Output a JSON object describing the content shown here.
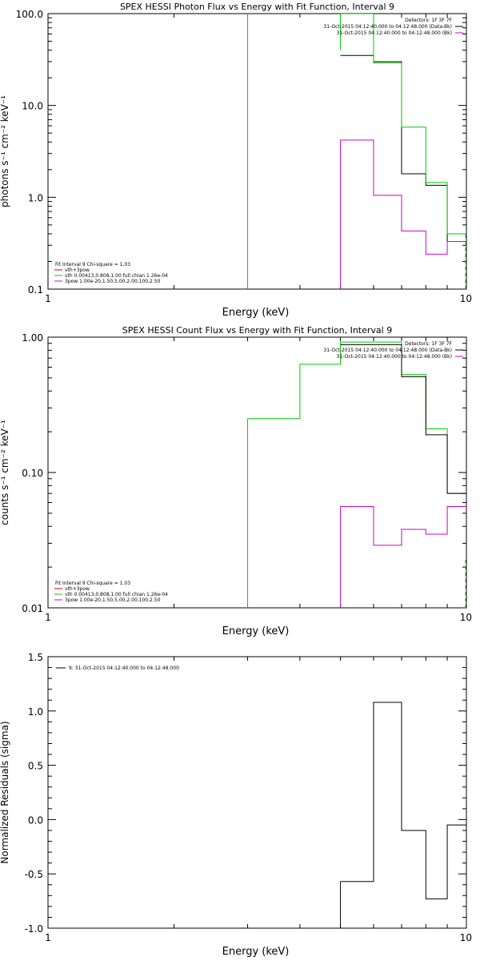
{
  "chart_data": [
    {
      "type": "line",
      "title": "SPEX HESSI Photon Flux vs Energy with Fit Function, Interval 9",
      "xlabel": "Energy (keV)",
      "ylabel": "photons s⁻¹ cm⁻² keV⁻¹",
      "xscale": "log",
      "yscale": "log",
      "xlim": [
        1,
        10
      ],
      "ylim": [
        0.1,
        100
      ],
      "xticks": [
        "1",
        "10"
      ],
      "yticks": [
        "0.1",
        "1.0",
        "10.0",
        "100.0"
      ],
      "legend_top": [
        "Detectors: 1F 3F 7F",
        "31-Oct-2015 04:12:40.000 to 04:12:48.000 (Data-Bk)",
        "31-Oct-2015 04:12:40.000 to 04:12:48.000 (Bk)"
      ],
      "legend_bottom": [
        "Fit Interval 9   Chi-square = 1.03",
        "vth+3pow",
        "vth 0.00413,0.808,1.00   full chian 1.26e-04",
        "3pow 1.00e-20,1.50,5.00,2.00,100,2.50"
      ],
      "colors": {
        "data": "#000000",
        "bk": "#cc00cc",
        "fit": "#00cc00",
        "legend2": "#cc0000"
      },
      "series": [
        {
          "role": "data",
          "edges": [
            5,
            6,
            7,
            8,
            9,
            10
          ],
          "values": [
            35,
            30,
            1.8,
            1.35,
            0.33
          ]
        },
        {
          "role": "bk",
          "edges": [
            5,
            6,
            7,
            8,
            9,
            10
          ],
          "values": [
            4.2,
            1.05,
            0.43,
            0.24,
            0.33
          ]
        },
        {
          "role": "fit",
          "edges": [
            5,
            6,
            7,
            8,
            9,
            10
          ],
          "values": [
            300,
            29,
            5.8,
            1.45,
            0.4
          ]
        }
      ],
      "vlines": [
        {
          "x": 3,
          "color": "#00cc00",
          "from": 0.1,
          "to": 100
        },
        {
          "x": 5,
          "color": "#00cc00",
          "from": 40,
          "to": 100
        },
        {
          "x": 5,
          "color": "#cc00cc",
          "from": 0.1,
          "to": 4.2
        }
      ]
    },
    {
      "type": "line",
      "title": "SPEX HESSI Count Flux vs Energy with Fit Function, Interval 9",
      "xlabel": "Energy (keV)",
      "ylabel": "counts s⁻¹ cm⁻² keV⁻¹",
      "xscale": "log",
      "yscale": "log",
      "xlim": [
        1,
        10
      ],
      "ylim": [
        0.01,
        1.0
      ],
      "xticks": [
        "1",
        "10"
      ],
      "yticks": [
        "0.01",
        "0.10",
        "1.00"
      ],
      "legend_top": [
        "Detectors: 1F 3F 7F",
        "31-Oct-2015 04:12:40.000 to 04:12:48.000 (Data-Bk)",
        "31-Oct-2015 04:12:40.000 to 04:12:48.000 (Bk)"
      ],
      "legend_bottom": [
        "Fit Interval 9   Chi-square = 1.03",
        "vth+3pow",
        "vth 0.00413,0.808,1.00   full chian 1.26e-04",
        "3pow 1.00e-20,1.50,5.00,2.00,100,2.50"
      ],
      "colors": {
        "data": "#000000",
        "bk": "#cc00cc",
        "fit": "#00cc00",
        "legend2": "#cc0000"
      },
      "series": [
        {
          "role": "fit",
          "edges": [
            3,
            4,
            5,
            6,
            7,
            8,
            9,
            10
          ],
          "values": [
            0.25,
            0.63,
            0.92,
            0.92,
            0.53,
            0.21,
            0.07
          ]
        },
        {
          "role": "data",
          "edges": [
            5,
            6,
            7,
            8,
            9,
            10
          ],
          "values": [
            0.88,
            0.88,
            0.51,
            0.19,
            0.07
          ]
        },
        {
          "role": "bk",
          "edges": [
            5,
            6,
            7,
            8,
            9,
            10
          ],
          "values": [
            0.056,
            0.029,
            0.038,
            0.035,
            0.056
          ]
        }
      ],
      "vlines": [
        {
          "x": 3,
          "color": "#00cc00",
          "from": 0.01,
          "to": 0.25
        },
        {
          "x": 5,
          "color": "#cc00cc",
          "from": 0.01,
          "to": 0.056
        }
      ]
    },
    {
      "type": "line",
      "title": "",
      "xlabel": "Energy (keV)",
      "ylabel": "Normalized Residuals (sigma)",
      "xscale": "log",
      "yscale": "linear",
      "xlim": [
        1,
        10
      ],
      "ylim": [
        -1.0,
        1.5
      ],
      "xticks": [
        "1",
        "10"
      ],
      "yticks": [
        "-1.0",
        "-0.5",
        "0.0",
        "0.5",
        "1.0",
        "1.5"
      ],
      "legend_top": [
        "9: 31-Oct-2015 04:12:40.000 to 04:12:48.000"
      ],
      "legend_bottom": [],
      "colors": {
        "data": "#000000"
      },
      "series": [
        {
          "role": "data",
          "edges": [
            5,
            6,
            7,
            8,
            9,
            10
          ],
          "values": [
            -0.57,
            1.08,
            -0.1,
            -0.73,
            -0.05
          ]
        }
      ],
      "vlines": [
        {
          "x": 5,
          "color": "#000000",
          "from": -1.0,
          "to": -0.57
        }
      ]
    }
  ]
}
